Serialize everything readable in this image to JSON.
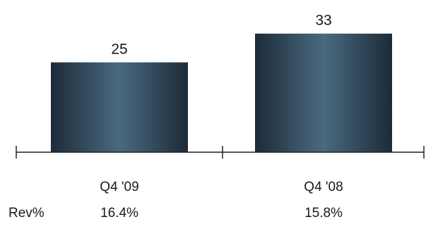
{
  "chart_data": {
    "type": "bar",
    "categories": [
      "Q4 '09",
      "Q4 '08"
    ],
    "values": [
      25,
      33
    ],
    "data_labels": [
      "25",
      "33"
    ],
    "title": "",
    "xlabel": "",
    "ylabel": "",
    "ylim": [
      0,
      33
    ],
    "grid": false,
    "legend": "none",
    "bar_color_edge": "#1c2b38",
    "bar_color_center": "#4a6a80",
    "axis_color": "#222222",
    "secondary_row": {
      "label": "Rev%",
      "values": [
        "16.4%",
        "15.8%"
      ]
    }
  }
}
